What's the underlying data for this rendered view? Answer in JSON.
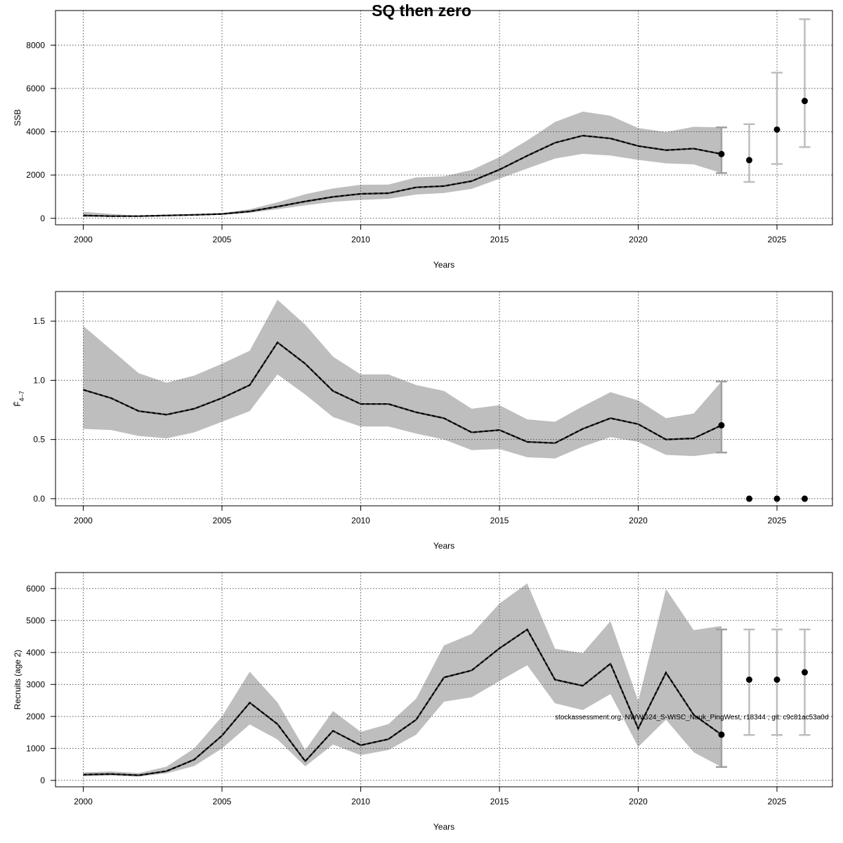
{
  "title": "SQ then zero",
  "footnote": "stockassessment.org, NWWG24_S-WISC_Nuuk_PingWest, r18344 ; git: c9c81ac53a0d",
  "colors": {
    "band": "#bebebe",
    "line": "#000000",
    "grid": "#555555",
    "forecast_bar": "#bebebe",
    "estimate_bar": "#a0a0a0"
  },
  "chart_data": [
    {
      "type": "line",
      "id": "ssb",
      "ylabel": "SSB",
      "xlabel": "Years",
      "xlim": [
        1999,
        2027
      ],
      "ylim": [
        -300,
        9600
      ],
      "xticks": [
        2000,
        2005,
        2010,
        2015,
        2020,
        2025
      ],
      "yticks": [
        0,
        2000,
        4000,
        6000,
        8000
      ],
      "grid": true,
      "x": [
        2000,
        2001,
        2002,
        2003,
        2004,
        2005,
        2006,
        2007,
        2008,
        2009,
        2010,
        2011,
        2012,
        2013,
        2014,
        2015,
        2016,
        2017,
        2018,
        2019,
        2020,
        2021,
        2022,
        2023
      ],
      "estimate": [
        130,
        100,
        100,
        130,
        160,
        200,
        320,
        540,
        780,
        990,
        1130,
        1160,
        1430,
        1490,
        1720,
        2250,
        2890,
        3490,
        3820,
        3690,
        3340,
        3150,
        3220,
        2970
      ],
      "lower": [
        60,
        80,
        80,
        110,
        130,
        170,
        250,
        420,
        600,
        760,
        850,
        900,
        1100,
        1170,
        1360,
        1830,
        2300,
        2760,
        2980,
        2900,
        2700,
        2540,
        2490,
        2090
      ],
      "upper": [
        300,
        200,
        120,
        150,
        190,
        240,
        420,
        740,
        1110,
        1380,
        1550,
        1560,
        1890,
        1940,
        2230,
        2830,
        3600,
        4450,
        4930,
        4740,
        4170,
        3990,
        4230,
        4200
      ],
      "forecast": {
        "x": [
          2023,
          2024,
          2025,
          2026
        ],
        "estimate": [
          2970,
          2690,
          4100,
          5420
        ],
        "lower": [
          2090,
          1680,
          2510,
          3290
        ],
        "upper": [
          4200,
          4350,
          6730,
          9200
        ]
      }
    },
    {
      "type": "line",
      "id": "fbar",
      "ylabel": "F̄4-7",
      "xlabel": "Years",
      "xlim": [
        1999,
        2027
      ],
      "ylim": [
        -0.06,
        1.75
      ],
      "xticks": [
        2000,
        2005,
        2010,
        2015,
        2020,
        2025
      ],
      "yticks": [
        0.0,
        0.5,
        1.0,
        1.5
      ],
      "grid": true,
      "x": [
        2000,
        2001,
        2002,
        2003,
        2004,
        2005,
        2006,
        2007,
        2008,
        2009,
        2010,
        2011,
        2012,
        2013,
        2014,
        2015,
        2016,
        2017,
        2018,
        2019,
        2020,
        2021,
        2022,
        2023
      ],
      "estimate": [
        0.92,
        0.85,
        0.74,
        0.71,
        0.76,
        0.85,
        0.96,
        1.32,
        1.14,
        0.91,
        0.8,
        0.8,
        0.73,
        0.68,
        0.56,
        0.58,
        0.48,
        0.47,
        0.59,
        0.68,
        0.63,
        0.5,
        0.51,
        0.62
      ],
      "lower": [
        0.59,
        0.58,
        0.53,
        0.51,
        0.56,
        0.65,
        0.74,
        1.05,
        0.88,
        0.69,
        0.61,
        0.61,
        0.55,
        0.5,
        0.41,
        0.42,
        0.35,
        0.34,
        0.44,
        0.52,
        0.48,
        0.37,
        0.36,
        0.39
      ],
      "upper": [
        1.46,
        1.26,
        1.06,
        0.98,
        1.04,
        1.14,
        1.25,
        1.68,
        1.47,
        1.2,
        1.05,
        1.05,
        0.96,
        0.91,
        0.76,
        0.79,
        0.67,
        0.65,
        0.78,
        0.9,
        0.83,
        0.68,
        0.72,
        0.99
      ],
      "forecast": {
        "x": [
          2023,
          2024,
          2025,
          2026
        ],
        "estimate": [
          0.62,
          0.0,
          0.0,
          0.0
        ],
        "lower": [
          0.39,
          0.0,
          0.0,
          0.0
        ],
        "upper": [
          0.99,
          0.0,
          0.0,
          0.0
        ]
      }
    },
    {
      "type": "line",
      "id": "recruits",
      "ylabel": "Recruits (age 2)",
      "xlabel": "Years",
      "xlim": [
        1999,
        2027
      ],
      "ylim": [
        -200,
        6500
      ],
      "xticks": [
        2000,
        2005,
        2010,
        2015,
        2020,
        2025
      ],
      "yticks": [
        0,
        1000,
        2000,
        3000,
        4000,
        5000,
        6000
      ],
      "grid": true,
      "x": [
        2000,
        2001,
        2002,
        2003,
        2004,
        2005,
        2006,
        2007,
        2008,
        2009,
        2010,
        2011,
        2012,
        2013,
        2014,
        2015,
        2016,
        2017,
        2018,
        2019,
        2020,
        2021,
        2022,
        2023
      ],
      "estimate": [
        180,
        200,
        160,
        290,
        650,
        1400,
        2430,
        1760,
        600,
        1550,
        1100,
        1290,
        1900,
        3220,
        3440,
        4130,
        4720,
        3150,
        2960,
        3650,
        1620,
        3370,
        2050,
        1430
      ],
      "lower": [
        130,
        150,
        120,
        220,
        450,
        1000,
        1750,
        1280,
        440,
        1120,
        790,
        950,
        1430,
        2460,
        2600,
        3110,
        3600,
        2410,
        2200,
        2700,
        1050,
        1900,
        880,
        420
      ],
      "upper": [
        250,
        280,
        230,
        430,
        1000,
        2000,
        3400,
        2440,
        950,
        2170,
        1520,
        1760,
        2560,
        4220,
        4580,
        5530,
        6160,
        4120,
        3980,
        4980,
        2480,
        5980,
        4700,
        4830
      ],
      "forecast": {
        "x": [
          2023,
          2024,
          2025,
          2026
        ],
        "estimate": [
          1430,
          3150,
          3150,
          3380
        ],
        "lower": [
          420,
          1420,
          1420,
          1420
        ],
        "upper": [
          4720,
          4720,
          4720,
          4720
        ]
      }
    }
  ]
}
